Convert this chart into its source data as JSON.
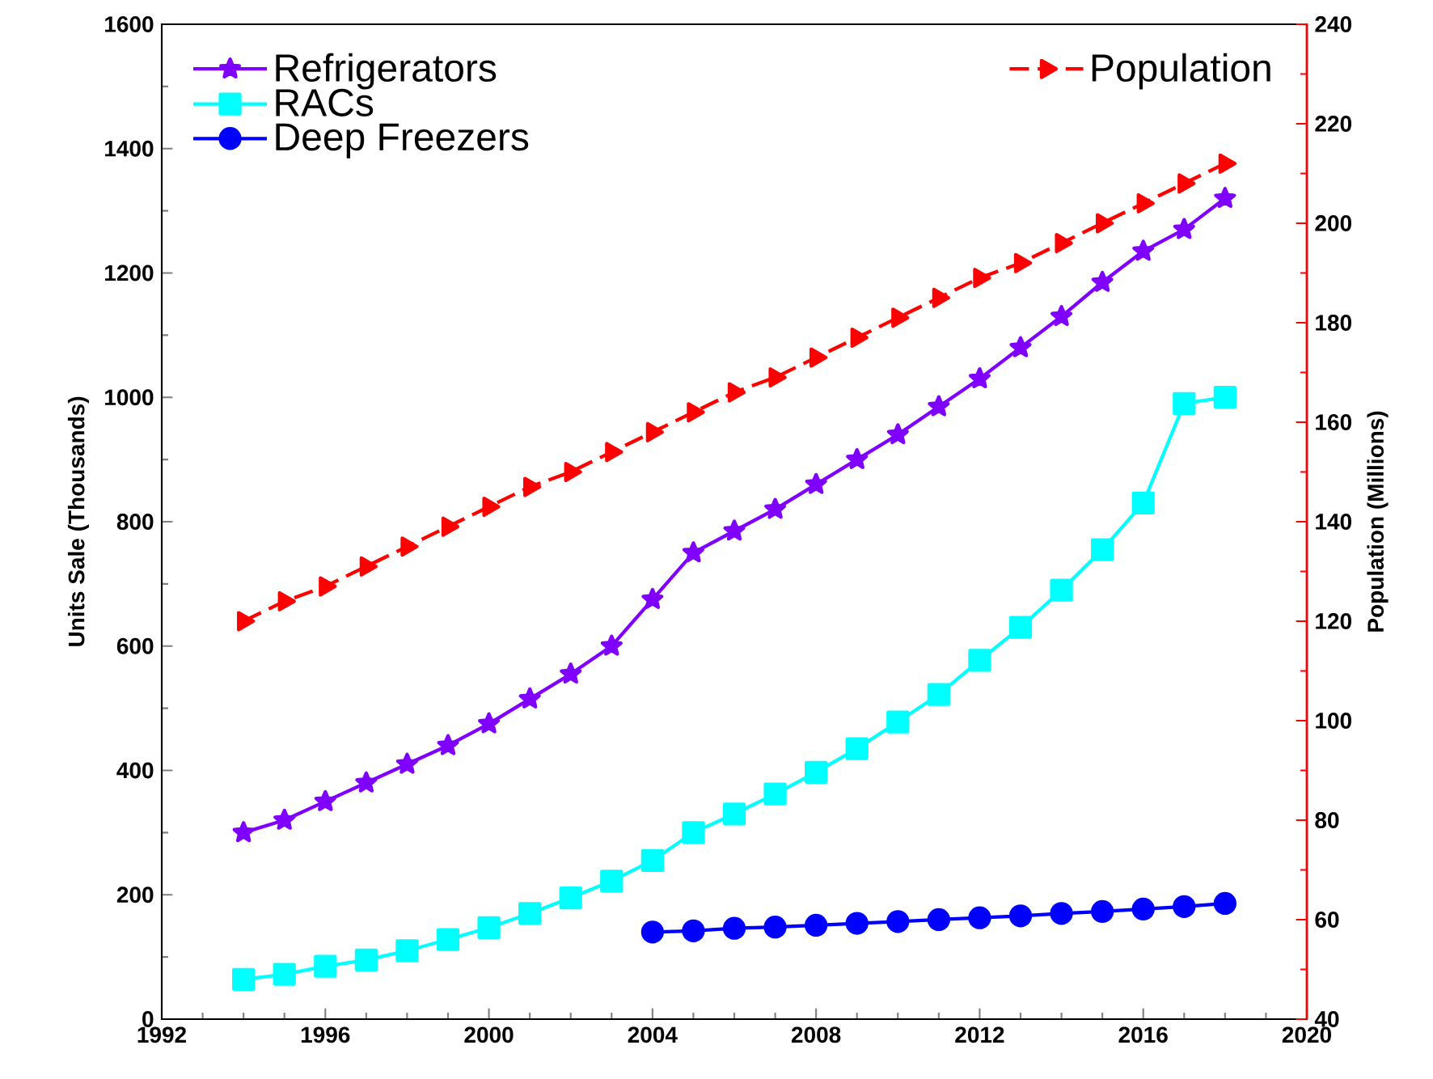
{
  "chart_data": {
    "type": "line",
    "x": [
      1994,
      1995,
      1996,
      1997,
      1998,
      1999,
      2000,
      2001,
      2002,
      2003,
      2004,
      2005,
      2006,
      2007,
      2008,
      2009,
      2010,
      2011,
      2012,
      2013,
      2014,
      2015,
      2016,
      2017,
      2018
    ],
    "xlabel": null,
    "ylabel": "Units Sale (Thousands)",
    "y2label": "Population (Millions)",
    "series": [
      {
        "name": "Refrigerators",
        "color": "#7f00ff",
        "marker": "star",
        "line_style": "solid",
        "values": [
          300,
          320,
          350,
          380,
          410,
          440,
          475,
          515,
          555,
          600,
          675,
          750,
          785,
          820,
          860,
          900,
          940,
          985,
          1030,
          1080,
          1130,
          1185,
          1235,
          1270,
          1320
        ]
      },
      {
        "name": "RACs",
        "color": "#00ffff",
        "marker": "square",
        "line_style": "solid",
        "values": [
          64,
          72,
          85,
          95,
          110,
          128,
          147,
          170,
          195,
          222,
          255,
          300,
          330,
          362,
          397,
          435,
          478,
          522,
          577,
          630,
          690,
          755,
          830,
          990,
          1000
        ]
      },
      {
        "name": "Deep Freezers",
        "color": "#0000ff",
        "marker": "circle",
        "line_style": "solid",
        "values": [
          null,
          null,
          null,
          null,
          null,
          null,
          null,
          null,
          null,
          null,
          140,
          142,
          146,
          148,
          151,
          154,
          157,
          160,
          163,
          166,
          170,
          173,
          177,
          181,
          186
        ]
      },
      {
        "name": "Population",
        "color": "#ff0000",
        "marker": "triangle",
        "line_style": "dashed",
        "axis": "y2",
        "values": [
          120,
          124,
          127,
          131,
          135,
          139,
          143,
          147,
          150,
          154,
          158,
          162,
          166,
          169,
          173,
          177,
          181,
          185,
          189,
          192,
          196,
          200,
          204,
          208,
          212
        ]
      }
    ],
    "xlim": [
      1992,
      2020
    ],
    "xticks": [
      1992,
      1996,
      2000,
      2004,
      2008,
      2012,
      2016,
      2020
    ],
    "ylim": [
      0,
      1600
    ],
    "yticks": [
      0,
      200,
      400,
      600,
      800,
      1000,
      1200,
      1400,
      1600
    ],
    "y2lim": [
      40,
      240
    ],
    "y2ticks": [
      40,
      60,
      80,
      100,
      120,
      140,
      160,
      180,
      200,
      220,
      240
    ],
    "grid": false,
    "legend": "top left"
  }
}
